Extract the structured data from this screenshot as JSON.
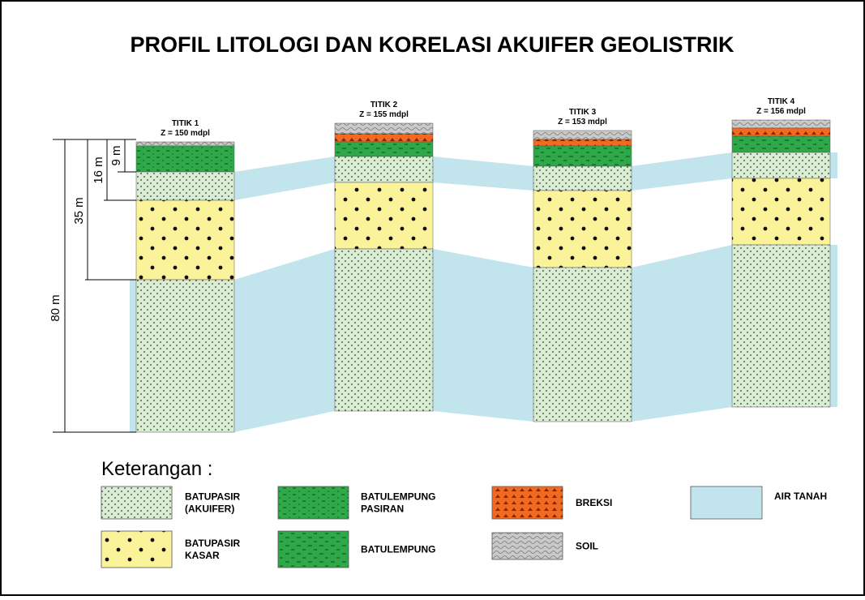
{
  "title": "PROFIL LITOLOGI DAN KORELASI AKUIFER GEOLISTRIK",
  "points": [
    {
      "name": "TITIK 1",
      "elevation": "Z = 150 mdpl"
    },
    {
      "name": "TITIK 2",
      "elevation": "Z = 155 mdpl"
    },
    {
      "name": "TITIK 3",
      "elevation": "Z = 153 mdpl"
    },
    {
      "name": "TITIK 4",
      "elevation": "Z = 156 mdpl"
    }
  ],
  "depth_labels": [
    "9 m",
    "16 m",
    "35 m",
    "80 m"
  ],
  "legend": {
    "title": "Keterangan :",
    "items": [
      {
        "label": [
          "BATUPASIR",
          "(AKUIFER)"
        ]
      },
      {
        "label": [
          "BATUPASIR",
          "KASAR"
        ]
      },
      {
        "label": [
          "BATULEMPUNG",
          "PASIRAN"
        ]
      },
      {
        "label": [
          "BATULEMPUNG"
        ]
      },
      {
        "label": [
          "BREKSI"
        ]
      },
      {
        "label": [
          "SOIL"
        ]
      },
      {
        "label": [
          "AIR TANAH"
        ]
      }
    ]
  }
}
